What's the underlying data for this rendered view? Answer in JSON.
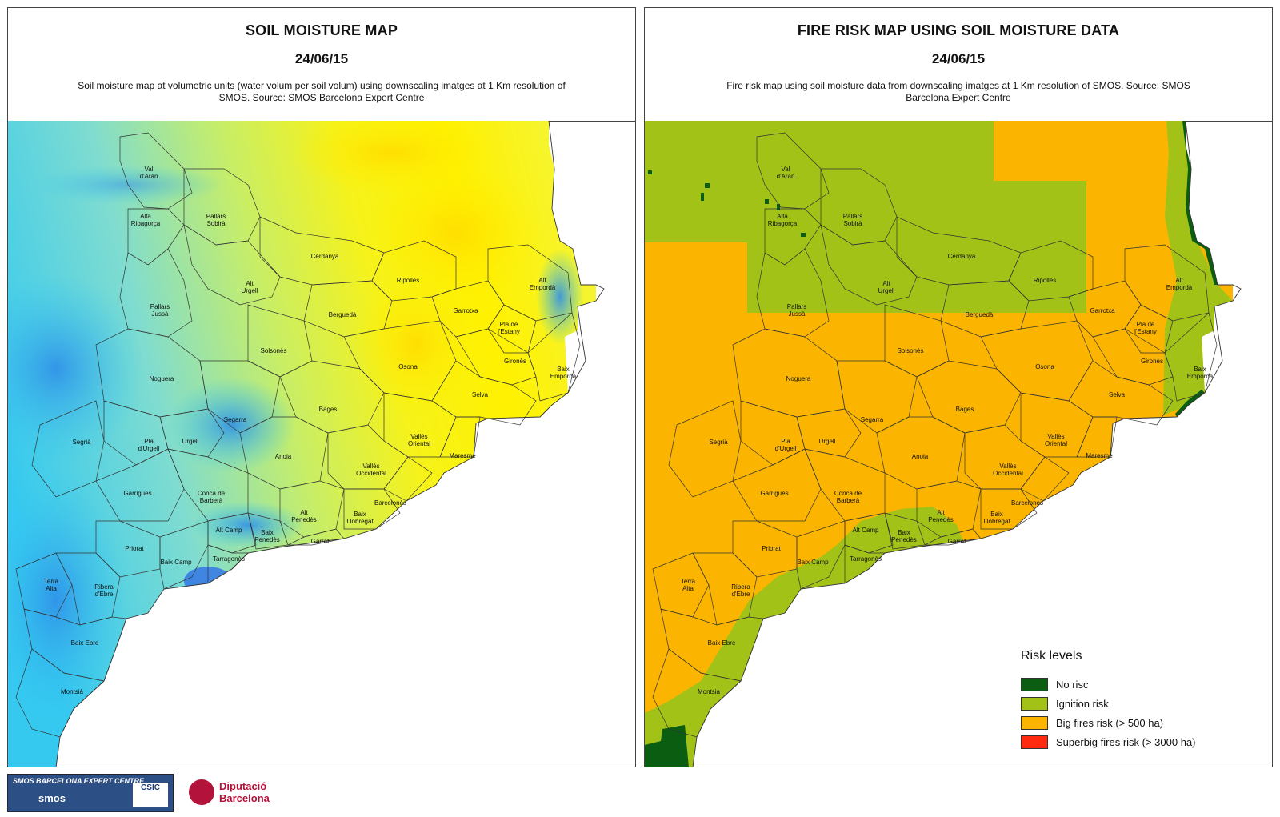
{
  "left": {
    "title": "SOIL MOISTURE MAP",
    "date": "24/06/15",
    "description": "Soil moisture map at volumetric units (water volum per soil volum) using  downscaling imatges at 1 Km resolution of SMOS. Source: SMOS Barcelona Expert Centre"
  },
  "right": {
    "title": "FIRE RISK MAP USING SOIL MOISTURE DATA",
    "date": "24/06/15",
    "description": "Fire risk map using soil moisture data from downscaling imatges at 1 Km resolution of SMOS. Source: SMOS Barcelona Expert Centre"
  },
  "legend": {
    "title": "Risk levels",
    "items": [
      {
        "label": "No risc",
        "color": "#0b5d12"
      },
      {
        "label": "Ignition risk",
        "color": "#a3c218"
      },
      {
        "label": "Big fires risk (> 500 ha)",
        "color": "#fbb500"
      },
      {
        "label": "Superbig fires risk (> 3000 ha)",
        "color": "#ff2a10"
      }
    ]
  },
  "map_colors": {
    "moisture_dry": "#fff100",
    "moisture_mid": "#cdef5a",
    "moisture_wet": "#35c9f0",
    "moisture_very_wet": "#2f6fe6",
    "risk_ignition": "#a3c218",
    "risk_big": "#fbb500",
    "risk_none": "#0b5d12"
  },
  "comarques": [
    "Val d'Aran",
    "Alta Ribagorça",
    "Pallars Sobirà",
    "Cerdanya",
    "Pallars Jussà",
    "Alt Urgell",
    "Ripollès",
    "Alt Empordà",
    "Berguedà",
    "Garrotxa",
    "Pla de l'Estany",
    "Solsonès",
    "Noguera",
    "Osona",
    "Gironès",
    "Baix Empordà",
    "Bages",
    "Selva",
    "Segarra",
    "Segrià",
    "Pla d'Urgell",
    "Urgell",
    "Vallès Oriental",
    "Anoia",
    "Maresme",
    "Vallès Occidental",
    "Garrigues",
    "Conca de Barberà",
    "Alt Penedès",
    "Baix Llobregat",
    "Barcelonès",
    "Alt Camp",
    "Baix Penedès",
    "Garraf",
    "Priorat",
    "Baix Camp",
    "Tarragonès",
    "Terra Alta",
    "Ribera d'Ebre",
    "Baix Ebre",
    "Montsià"
  ],
  "footer": {
    "smos_logo_line1": "SMOS BARCELONA EXPERT CENTRE",
    "smos_logo_line2": "smos",
    "csic": "CSIC",
    "diputacio_line1": "Diputació",
    "diputacio_line2": "Barcelona"
  }
}
